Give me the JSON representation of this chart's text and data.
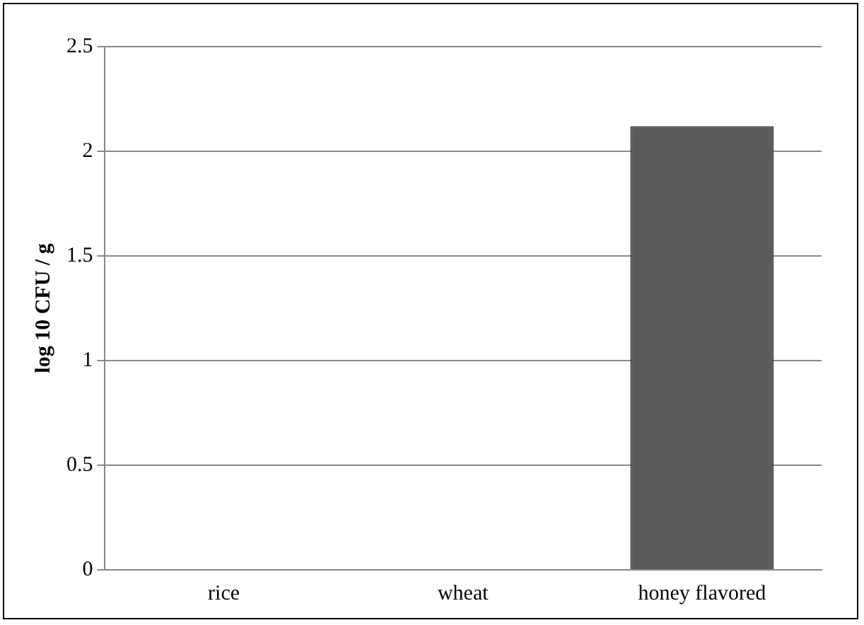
{
  "chart_data": {
    "type": "bar",
    "ylabel": "log 10 CFU / g",
    "categories": [
      "rice",
      "wheat",
      "honey flavored"
    ],
    "values": [
      0,
      0,
      2.12
    ],
    "color": "#5a5a5a",
    "ylim": [
      0,
      2.5
    ],
    "yticks": [
      0,
      0.5,
      1,
      1.5,
      2,
      2.5
    ],
    "grid": "y",
    "legend": false
  }
}
